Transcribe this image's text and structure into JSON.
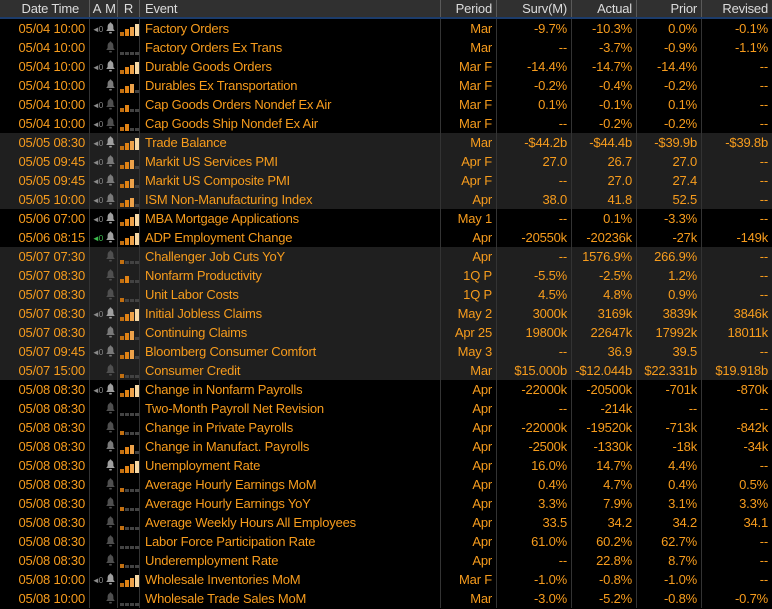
{
  "header": {
    "columns": [
      "Date Time",
      "A",
      "M",
      "R",
      "Event",
      "Period",
      "Surv(M)",
      "Actual",
      "Prior",
      "Revised"
    ]
  },
  "colors": {
    "amber_text": "#f79c1d",
    "header_bg": "#303030",
    "header_text": "#dcdcdc",
    "header_underline_blue": "#1c3c6b",
    "row_dark_bg": "#000000",
    "row_shaded_bg": "#1f1f1f",
    "audio_icon_gray": "#8a8a8a",
    "audio_icon_green": "#3dbb4e",
    "bell_bright": "#a0a0a0",
    "bell_mid": "#7a7a7a",
    "bell_dim": "#4f4f4f",
    "relevance_bar_colors": [
      "#c26f10",
      "#e08214",
      "#eda24a",
      "#f6d8a6"
    ],
    "relevance_bar_dim": "#434343"
  },
  "icons": {
    "audio": "audio-alert-icon",
    "bell": "alarm-bell-icon",
    "relevance": "relevance-bars-icon"
  },
  "rows": [
    {
      "date_time": "05/04 10:00",
      "audio": "gray",
      "bell": true,
      "relevance": 4,
      "shaded": false,
      "event": "Factory Orders",
      "period": "Mar",
      "surv": "-9.7%",
      "actual": "-10.3%",
      "prior": "0.0%",
      "revised": "-0.1%"
    },
    {
      "date_time": "05/04 10:00",
      "audio": "none",
      "bell": true,
      "relevance": 0,
      "shaded": false,
      "event": "Factory Orders Ex Trans",
      "period": "Mar",
      "surv": "--",
      "actual": "-3.7%",
      "prior": "-0.9%",
      "revised": "-1.1%"
    },
    {
      "date_time": "05/04 10:00",
      "audio": "gray",
      "bell": true,
      "relevance": 4,
      "shaded": false,
      "event": "Durable Goods Orders",
      "period": "Mar F",
      "surv": "-14.4%",
      "actual": "-14.7%",
      "prior": "-14.4%",
      "revised": "--"
    },
    {
      "date_time": "05/04 10:00",
      "audio": "none",
      "bell": true,
      "relevance": 3,
      "shaded": false,
      "event": "Durables Ex Transportation",
      "period": "Mar F",
      "surv": "-0.2%",
      "actual": "-0.4%",
      "prior": "-0.2%",
      "revised": "--"
    },
    {
      "date_time": "05/04 10:00",
      "audio": "gray",
      "bell": true,
      "relevance": 2,
      "shaded": false,
      "event": "Cap Goods Orders Nondef Ex Air",
      "period": "Mar F",
      "surv": "0.1%",
      "actual": "-0.1%",
      "prior": "0.1%",
      "revised": "--"
    },
    {
      "date_time": "05/04 10:00",
      "audio": "gray",
      "bell": true,
      "relevance": 2,
      "shaded": false,
      "event": "Cap Goods Ship Nondef Ex Air",
      "period": "Mar F",
      "surv": "--",
      "actual": "-0.2%",
      "prior": "-0.2%",
      "revised": "--"
    },
    {
      "date_time": "05/05 08:30",
      "audio": "gray",
      "bell": true,
      "relevance": 4,
      "shaded": true,
      "event": "Trade Balance",
      "period": "Mar",
      "surv": "-$44.2b",
      "actual": "-$44.4b",
      "prior": "-$39.9b",
      "revised": "-$39.8b"
    },
    {
      "date_time": "05/05 09:45",
      "audio": "gray",
      "bell": true,
      "relevance": 3,
      "shaded": true,
      "event": "Markit US Services PMI",
      "period": "Apr F",
      "surv": "27.0",
      "actual": "26.7",
      "prior": "27.0",
      "revised": "--"
    },
    {
      "date_time": "05/05 09:45",
      "audio": "gray",
      "bell": true,
      "relevance": 3,
      "shaded": true,
      "event": "Markit US Composite PMI",
      "period": "Apr F",
      "surv": "--",
      "actual": "27.0",
      "prior": "27.4",
      "revised": "--"
    },
    {
      "date_time": "05/05 10:00",
      "audio": "gray",
      "bell": true,
      "relevance": 3,
      "shaded": true,
      "event": "ISM Non-Manufacturing Index",
      "period": "Apr",
      "surv": "38.0",
      "actual": "41.8",
      "prior": "52.5",
      "revised": "--"
    },
    {
      "date_time": "05/06 07:00",
      "audio": "gray",
      "bell": true,
      "relevance": 4,
      "shaded": false,
      "event": "MBA Mortgage Applications",
      "period": "May 1",
      "surv": "--",
      "actual": "0.1%",
      "prior": "-3.3%",
      "revised": "--"
    },
    {
      "date_time": "05/06 08:15",
      "audio": "green",
      "bell": true,
      "relevance": 4,
      "shaded": false,
      "event": "ADP Employment Change",
      "period": "Apr",
      "surv": "-20550k",
      "actual": "-20236k",
      "prior": "-27k",
      "revised": "-149k"
    },
    {
      "date_time": "05/07 07:30",
      "audio": "none",
      "bell": true,
      "relevance": 1,
      "shaded": true,
      "event": "Challenger Job Cuts YoY",
      "period": "Apr",
      "surv": "--",
      "actual": "1576.9%",
      "prior": "266.9%",
      "revised": "--"
    },
    {
      "date_time": "05/07 08:30",
      "audio": "none",
      "bell": true,
      "relevance": 2,
      "shaded": true,
      "event": "Nonfarm Productivity",
      "period": "1Q P",
      "surv": "-5.5%",
      "actual": "-2.5%",
      "prior": "1.2%",
      "revised": "--"
    },
    {
      "date_time": "05/07 08:30",
      "audio": "none",
      "bell": true,
      "relevance": 1,
      "shaded": true,
      "event": "Unit Labor Costs",
      "period": "1Q P",
      "surv": "4.5%",
      "actual": "4.8%",
      "prior": "0.9%",
      "revised": "--"
    },
    {
      "date_time": "05/07 08:30",
      "audio": "gray",
      "bell": true,
      "relevance": 4,
      "shaded": true,
      "event": "Initial Jobless Claims",
      "period": "May 2",
      "surv": "3000k",
      "actual": "3169k",
      "prior": "3839k",
      "revised": "3846k"
    },
    {
      "date_time": "05/07 08:30",
      "audio": "none",
      "bell": true,
      "relevance": 3,
      "shaded": true,
      "event": "Continuing Claims",
      "period": "Apr 25",
      "surv": "19800k",
      "actual": "22647k",
      "prior": "17992k",
      "revised": "18011k"
    },
    {
      "date_time": "05/07 09:45",
      "audio": "gray",
      "bell": true,
      "relevance": 3,
      "shaded": true,
      "event": "Bloomberg Consumer Comfort",
      "period": "May 3",
      "surv": "--",
      "actual": "36.9",
      "prior": "39.5",
      "revised": "--"
    },
    {
      "date_time": "05/07 15:00",
      "audio": "none",
      "bell": true,
      "relevance": 1,
      "shaded": true,
      "event": "Consumer Credit",
      "period": "Mar",
      "surv": "$15.000b",
      "actual": "-$12.044b",
      "prior": "$22.331b",
      "revised": "$19.918b"
    },
    {
      "date_time": "05/08 08:30",
      "audio": "gray",
      "bell": true,
      "relevance": 4,
      "shaded": false,
      "event": "Change in Nonfarm Payrolls",
      "period": "Apr",
      "surv": "-22000k",
      "actual": "-20500k",
      "prior": "-701k",
      "revised": "-870k"
    },
    {
      "date_time": "05/08 08:30",
      "audio": "none",
      "bell": true,
      "relevance": 0,
      "shaded": false,
      "event": "Two-Month Payroll Net Revision",
      "period": "Apr",
      "surv": "--",
      "actual": "-214k",
      "prior": "--",
      "revised": "--"
    },
    {
      "date_time": "05/08 08:30",
      "audio": "none",
      "bell": true,
      "relevance": 1,
      "shaded": false,
      "event": "Change in Private Payrolls",
      "period": "Apr",
      "surv": "-22000k",
      "actual": "-19520k",
      "prior": "-713k",
      "revised": "-842k"
    },
    {
      "date_time": "05/08 08:30",
      "audio": "none",
      "bell": true,
      "relevance": 3,
      "shaded": false,
      "event": "Change in Manufact. Payrolls",
      "period": "Apr",
      "surv": "-2500k",
      "actual": "-1330k",
      "prior": "-18k",
      "revised": "-34k"
    },
    {
      "date_time": "05/08 08:30",
      "audio": "none",
      "bell": true,
      "relevance": 4,
      "shaded": false,
      "event": "Unemployment Rate",
      "period": "Apr",
      "surv": "16.0%",
      "actual": "14.7%",
      "prior": "4.4%",
      "revised": "--"
    },
    {
      "date_time": "05/08 08:30",
      "audio": "none",
      "bell": true,
      "relevance": 1,
      "shaded": false,
      "event": "Average Hourly Earnings MoM",
      "period": "Apr",
      "surv": "0.4%",
      "actual": "4.7%",
      "prior": "0.4%",
      "revised": "0.5%"
    },
    {
      "date_time": "05/08 08:30",
      "audio": "none",
      "bell": true,
      "relevance": 1,
      "shaded": false,
      "event": "Average Hourly Earnings YoY",
      "period": "Apr",
      "surv": "3.3%",
      "actual": "7.9%",
      "prior": "3.1%",
      "revised": "3.3%"
    },
    {
      "date_time": "05/08 08:30",
      "audio": "none",
      "bell": true,
      "relevance": 1,
      "shaded": false,
      "event": "Average Weekly Hours All Employees",
      "period": "Apr",
      "surv": "33.5",
      "actual": "34.2",
      "prior": "34.2",
      "revised": "34.1"
    },
    {
      "date_time": "05/08 08:30",
      "audio": "none",
      "bell": true,
      "relevance": 0,
      "shaded": false,
      "event": "Labor Force Participation Rate",
      "period": "Apr",
      "surv": "61.0%",
      "actual": "60.2%",
      "prior": "62.7%",
      "revised": "--"
    },
    {
      "date_time": "05/08 08:30",
      "audio": "none",
      "bell": true,
      "relevance": 1,
      "shaded": false,
      "event": "Underemployment Rate",
      "period": "Apr",
      "surv": "--",
      "actual": "22.8%",
      "prior": "8.7%",
      "revised": "--"
    },
    {
      "date_time": "05/08 10:00",
      "audio": "gray",
      "bell": true,
      "relevance": 4,
      "shaded": false,
      "event": "Wholesale Inventories MoM",
      "period": "Mar F",
      "surv": "-1.0%",
      "actual": "-0.8%",
      "prior": "-1.0%",
      "revised": "--"
    },
    {
      "date_time": "05/08 10:00",
      "audio": "none",
      "bell": true,
      "relevance": 0,
      "shaded": false,
      "event": "Wholesale Trade Sales MoM",
      "period": "Mar",
      "surv": "-3.0%",
      "actual": "-5.2%",
      "prior": "-0.8%",
      "revised": "-0.7%"
    }
  ]
}
